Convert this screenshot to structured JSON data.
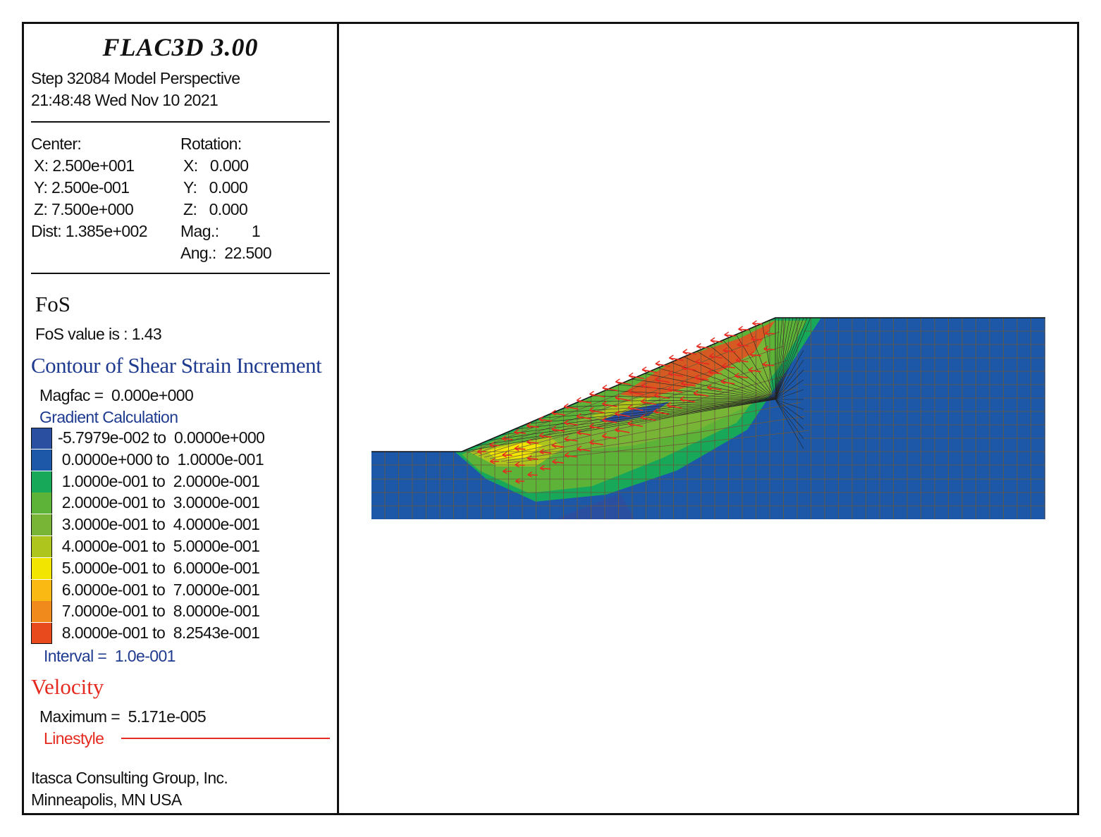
{
  "header": {
    "title": "FLAC3D 3.00",
    "step_line": "Step 32084  Model Perspective",
    "date_line": "21:48:48 Wed Nov 10 2021"
  },
  "view": {
    "center_label": "Center:",
    "center_x": "X: 2.500e+001",
    "center_y": "Y: 2.500e-001",
    "center_z": "Z: 7.500e+000",
    "dist": "Dist: 1.385e+002",
    "rotation_label": "Rotation:",
    "rot_x": "X:   0.000",
    "rot_y": "Y:   0.000",
    "rot_z": "Z:   0.000",
    "mag": "Mag.:        1",
    "ang": "Ang.:  22.500"
  },
  "fos": {
    "heading": "FoS",
    "value_text": "FoS value is : 1.43"
  },
  "contour": {
    "heading": "Contour of Shear Strain Increment",
    "magfac": "Magfac =  0.000e+000",
    "gradient": "Gradient Calculation",
    "items": [
      {
        "label": "-5.7979e-002 to  0.0000e+000",
        "color": "#2b4fa0"
      },
      {
        "label": " 0.0000e+000 to  1.0000e-001",
        "color": "#1d58a8"
      },
      {
        "label": " 1.0000e-001 to  2.0000e-001",
        "color": "#17a85a"
      },
      {
        "label": " 2.0000e-001 to  3.0000e-001",
        "color": "#5cb338"
      },
      {
        "label": " 3.0000e-001 to  4.0000e-001",
        "color": "#78b536"
      },
      {
        "label": " 4.0000e-001 to  5.0000e-001",
        "color": "#aec51e"
      },
      {
        "label": " 5.0000e-001 to  6.0000e-001",
        "color": "#f2e500"
      },
      {
        "label": " 6.0000e-001 to  7.0000e-001",
        "color": "#fbb914"
      },
      {
        "label": " 7.0000e-001 to  8.0000e-001",
        "color": "#f18a1c"
      },
      {
        "label": " 8.0000e-001 to  8.2543e-001",
        "color": "#e84a1e"
      }
    ],
    "interval": "Interval =  1.0e-001"
  },
  "velocity": {
    "heading": "Velocity",
    "maximum": "Maximum =  5.171e-005",
    "linestyle": "Linestyle"
  },
  "footer": {
    "company": "Itasca Consulting Group, Inc.",
    "location": "Minneapolis, MN  USA"
  },
  "colors": {
    "mesh_blue": "#1d58a8",
    "velocity_red": "#e52b20",
    "grid_line": "#6b5a3a"
  }
}
